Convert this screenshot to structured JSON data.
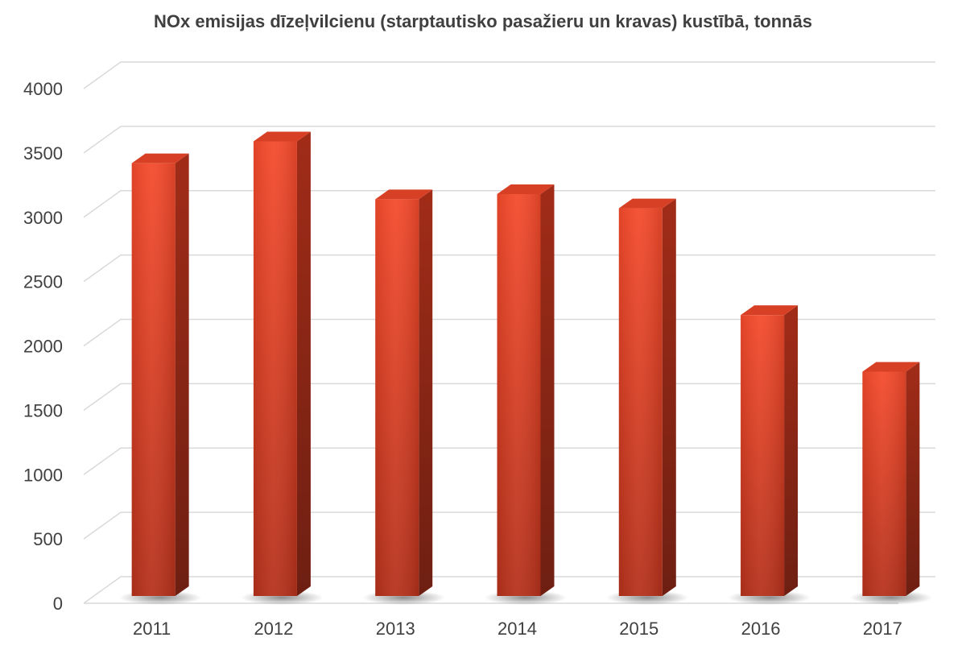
{
  "chart_data": {
    "type": "bar",
    "title": "NOx emisijas dīzeļvilcienu (starptautisko pasažieru un kravas) kustībā, tonnās",
    "xlabel": "",
    "ylabel": "",
    "categories": [
      "2011",
      "2012",
      "2013",
      "2014",
      "2015",
      "2016",
      "2017"
    ],
    "values": [
      3420,
      3590,
      3140,
      3180,
      3070,
      2240,
      1800
    ],
    "ylim": [
      0,
      4000
    ],
    "yticks": [
      "0",
      "500",
      "1000",
      "1500",
      "2000",
      "2500",
      "3000",
      "3500",
      "4000"
    ],
    "grid": true,
    "legend": "none",
    "style": "3d-column",
    "colors": {
      "bar_front_top": "#f0472a",
      "bar_front_bottom": "#b8321b",
      "bar_side": "#8a2616",
      "bar_top": "#d84025",
      "grid": "#d9d9d9",
      "text": "#404040"
    }
  }
}
